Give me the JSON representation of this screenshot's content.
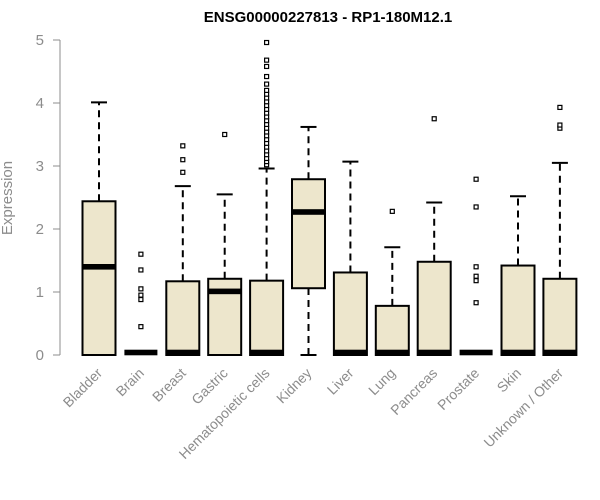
{
  "chart_data": {
    "type": "box",
    "title": "ENSG00000227813 - RP1-180M12.1",
    "ylabel": "Expression",
    "xlabel": "",
    "ylim": [
      0,
      5
    ],
    "yticks": [
      0,
      1,
      2,
      3,
      4,
      5
    ],
    "grid": false,
    "legend": "none",
    "box_fill": "#ede6cc",
    "box_stroke": "#000000",
    "categories": [
      "Bladder",
      "Brain",
      "Breast",
      "Gastric",
      "Hematopoietic cells",
      "Kidney",
      "Liver",
      "Lung",
      "Pancreas",
      "Prostate",
      "Skin",
      "Unknown / Other"
    ],
    "boxes": [
      {
        "category": "Bladder",
        "whisker_low": 0,
        "q1": 0,
        "median": 1.4,
        "q3": 2.44,
        "whisker_high": 4.01,
        "outliers": []
      },
      {
        "category": "Brain",
        "whisker_low": 0,
        "q1": 0,
        "median": 0,
        "q3": 0,
        "whisker_high": 0,
        "outliers": [
          0.45,
          0.88,
          0.95,
          1.05,
          1.35,
          1.6
        ]
      },
      {
        "category": "Breast",
        "whisker_low": 0,
        "q1": 0,
        "median": 0,
        "q3": 1.17,
        "whisker_high": 2.68,
        "outliers": [
          2.9,
          3.1,
          3.32
        ]
      },
      {
        "category": "Gastric",
        "whisker_low": 0,
        "q1": 0,
        "median": 1.01,
        "q3": 1.21,
        "whisker_high": 2.55,
        "outliers": [
          3.5
        ]
      },
      {
        "category": "Hematopoietic cells",
        "whisker_low": 0,
        "q1": 0,
        "median": 0,
        "q3": 1.18,
        "whisker_high": 2.96,
        "outliers": [
          3.02,
          3.07,
          3.12,
          3.18,
          3.24,
          3.3,
          3.36,
          3.42,
          3.48,
          3.54,
          3.6,
          3.66,
          3.72,
          3.78,
          3.84,
          3.9,
          3.96,
          4.02,
          4.08,
          4.14,
          4.2,
          4.3,
          4.42,
          4.58,
          4.68,
          4.96
        ]
      },
      {
        "category": "Kidney",
        "whisker_low": 0,
        "q1": 1.06,
        "median": 2.27,
        "q3": 2.79,
        "whisker_high": 3.62,
        "outliers": []
      },
      {
        "category": "Liver",
        "whisker_low": 0,
        "q1": 0,
        "median": 0,
        "q3": 1.31,
        "whisker_high": 3.07,
        "outliers": []
      },
      {
        "category": "Lung",
        "whisker_low": 0,
        "q1": 0,
        "median": 0,
        "q3": 0.78,
        "whisker_high": 1.71,
        "outliers": [
          2.28
        ]
      },
      {
        "category": "Pancreas",
        "whisker_low": 0,
        "q1": 0,
        "median": 0,
        "q3": 1.48,
        "whisker_high": 2.42,
        "outliers": [
          3.75
        ]
      },
      {
        "category": "Prostate",
        "whisker_low": 0,
        "q1": 0,
        "median": 0,
        "q3": 0,
        "whisker_high": 0,
        "outliers": [
          0.83,
          1.18,
          1.25,
          1.4,
          2.35,
          2.79
        ]
      },
      {
        "category": "Skin",
        "whisker_low": 0,
        "q1": 0,
        "median": 0,
        "q3": 1.42,
        "whisker_high": 2.52,
        "outliers": []
      },
      {
        "category": "Unknown / Other",
        "whisker_low": 0,
        "q1": 0,
        "median": 0,
        "q3": 1.21,
        "whisker_high": 3.05,
        "outliers": [
          3.6,
          3.65,
          3.93
        ]
      }
    ]
  }
}
